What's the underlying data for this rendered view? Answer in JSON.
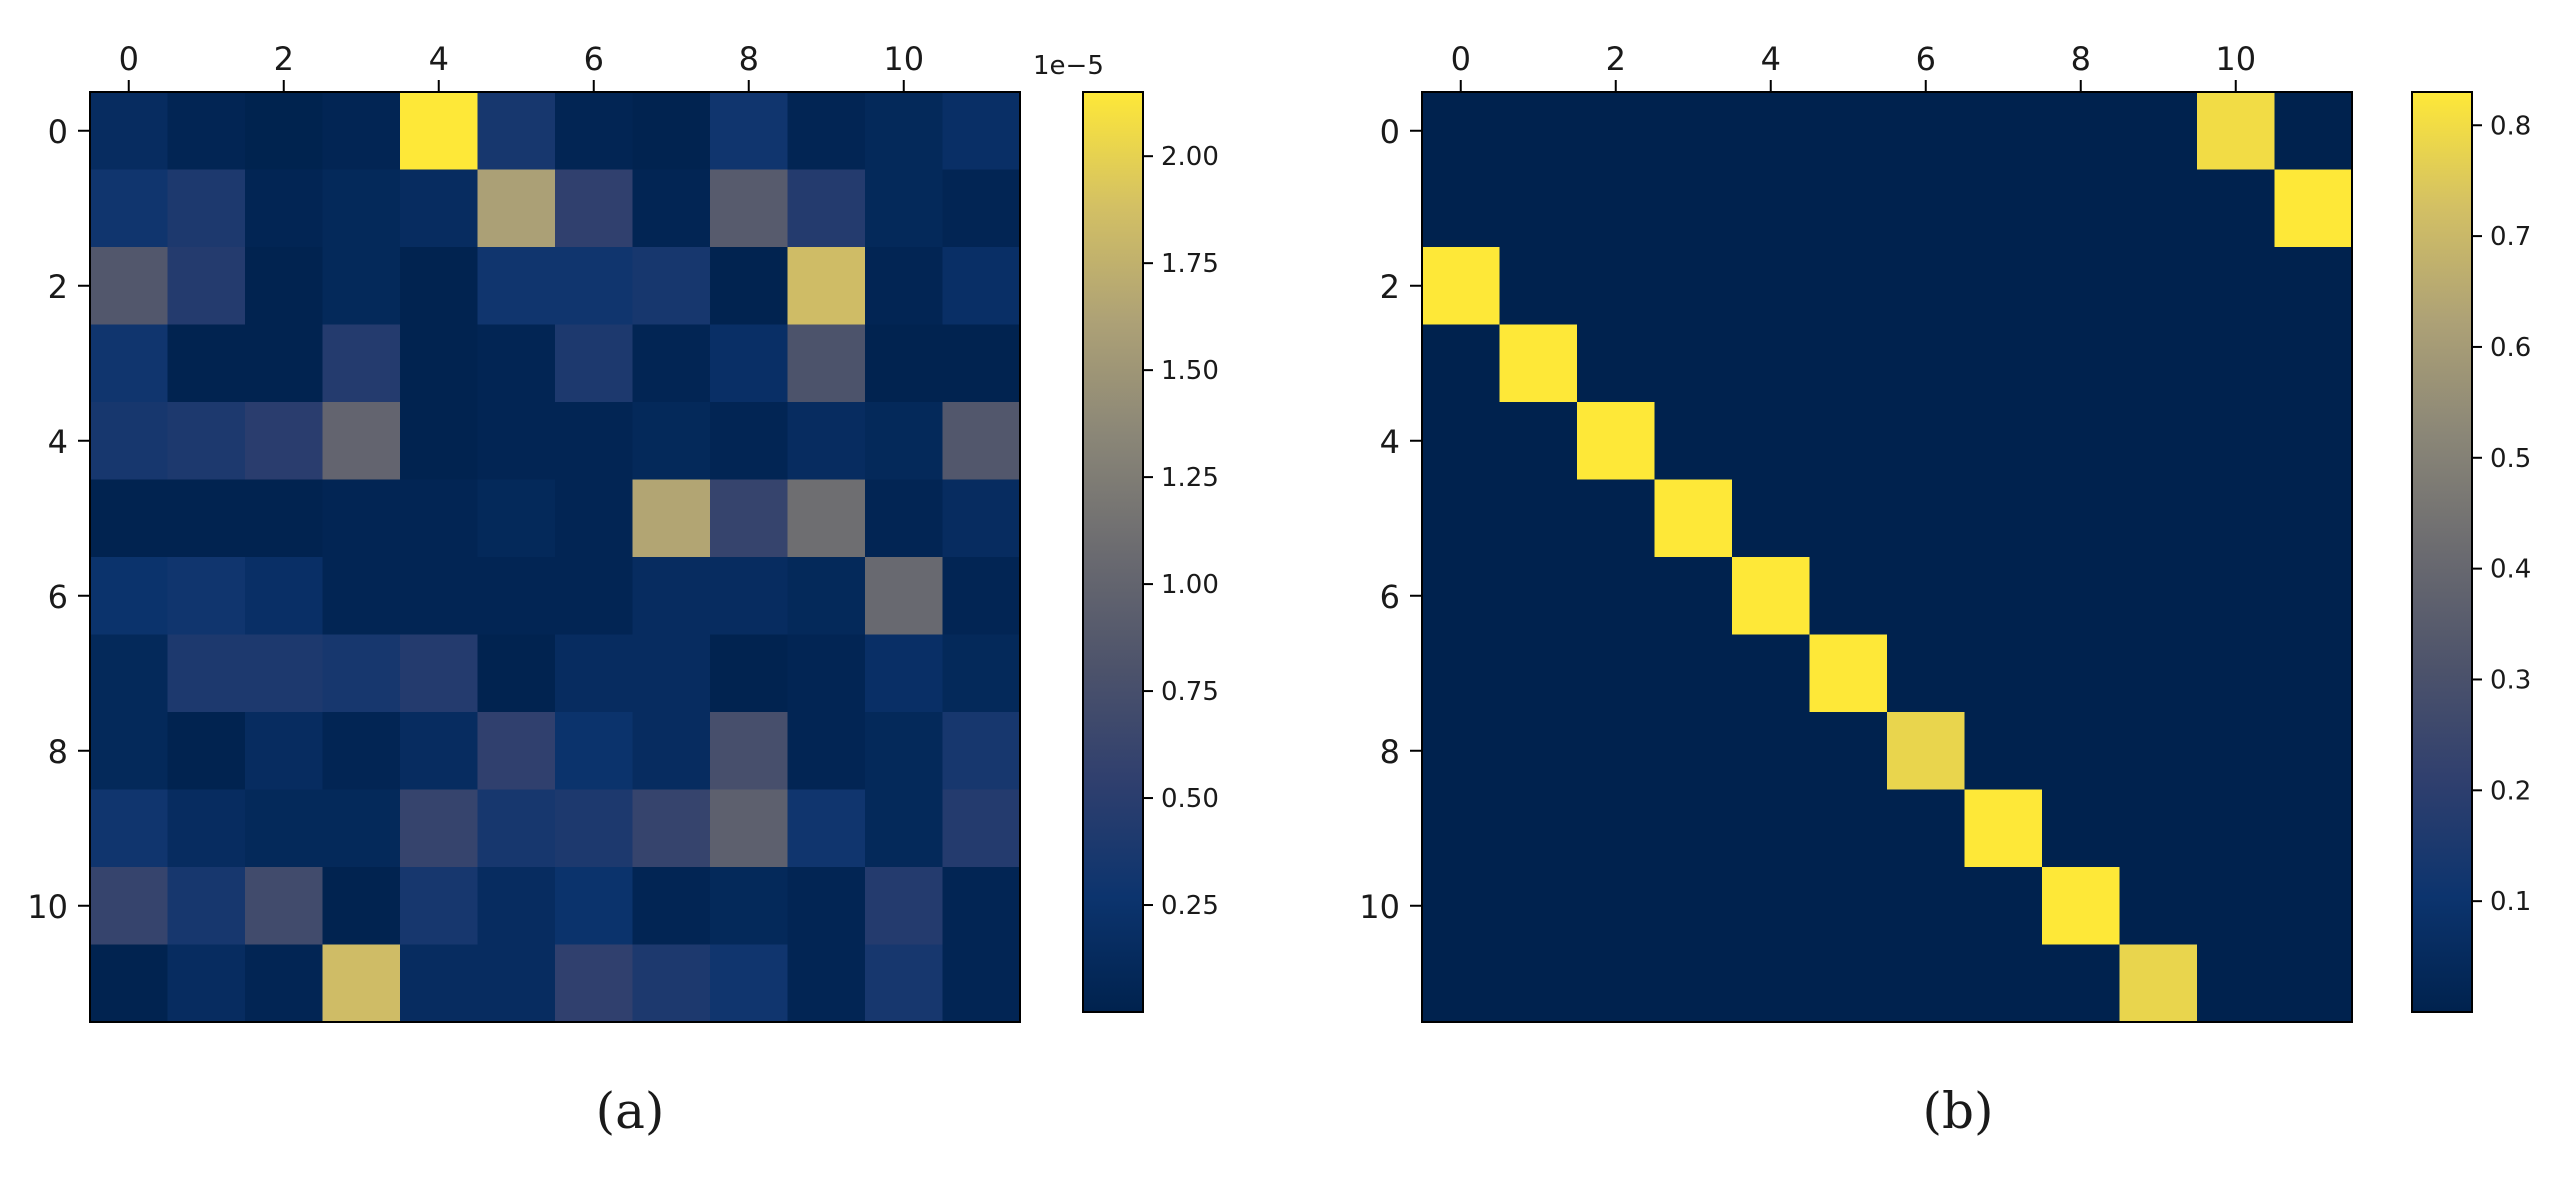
{
  "chart_data": [
    {
      "type": "heatmap",
      "panel_label": "(a)",
      "colormap": "cividis",
      "x_ticks": [
        "0",
        "2",
        "4",
        "6",
        "8",
        "10"
      ],
      "y_ticks": [
        "0",
        "2",
        "4",
        "6",
        "8",
        "10"
      ],
      "colorbar": {
        "offset_label": "1e−5",
        "ticks": [
          "0.25",
          "0.50",
          "0.75",
          "1.00",
          "1.25",
          "1.50",
          "1.75",
          "2.00"
        ],
        "tick_values": [
          0.25,
          0.5,
          0.75,
          1.0,
          1.25,
          1.5,
          1.75,
          2.0
        ],
        "range": [
          0.0,
          2.15
        ]
      },
      "matrix": [
        [
          0.15,
          0.05,
          0.01,
          0.05,
          2.15,
          0.35,
          0.05,
          0.02,
          0.3,
          0.05,
          0.1,
          0.2
        ],
        [
          0.3,
          0.4,
          0.05,
          0.1,
          0.15,
          1.6,
          0.55,
          0.05,
          0.9,
          0.45,
          0.1,
          0.05
        ],
        [
          0.85,
          0.45,
          0.02,
          0.1,
          0.02,
          0.3,
          0.3,
          0.35,
          0.02,
          1.85,
          0.05,
          0.2
        ],
        [
          0.3,
          0.02,
          0.02,
          0.45,
          0.02,
          0.05,
          0.4,
          0.05,
          0.2,
          0.8,
          0.02,
          0.02
        ],
        [
          0.35,
          0.4,
          0.5,
          1.0,
          0.02,
          0.05,
          0.05,
          0.1,
          0.05,
          0.15,
          0.1,
          0.85
        ],
        [
          0.02,
          0.02,
          0.02,
          0.05,
          0.05,
          0.1,
          0.05,
          1.65,
          0.6,
          1.1,
          0.05,
          0.15
        ],
        [
          0.25,
          0.3,
          0.2,
          0.05,
          0.05,
          0.05,
          0.05,
          0.15,
          0.15,
          0.1,
          1.05,
          0.05
        ],
        [
          0.1,
          0.4,
          0.4,
          0.35,
          0.45,
          0.02,
          0.15,
          0.15,
          0.02,
          0.05,
          0.2,
          0.1
        ],
        [
          0.1,
          0.02,
          0.15,
          0.05,
          0.15,
          0.55,
          0.25,
          0.15,
          0.75,
          0.05,
          0.1,
          0.35
        ],
        [
          0.3,
          0.15,
          0.1,
          0.1,
          0.6,
          0.35,
          0.4,
          0.6,
          0.95,
          0.3,
          0.1,
          0.45
        ],
        [
          0.6,
          0.35,
          0.7,
          0.02,
          0.35,
          0.15,
          0.25,
          0.05,
          0.1,
          0.05,
          0.45,
          0.05
        ],
        [
          0.02,
          0.15,
          0.05,
          1.85,
          0.15,
          0.15,
          0.55,
          0.4,
          0.3,
          0.05,
          0.35,
          0.05
        ]
      ]
    },
    {
      "type": "heatmap",
      "panel_label": "(b)",
      "colormap": "cividis",
      "x_ticks": [
        "0",
        "2",
        "4",
        "6",
        "8",
        "10"
      ],
      "y_ticks": [
        "0",
        "2",
        "4",
        "6",
        "8",
        "10"
      ],
      "colorbar": {
        "offset_label": "",
        "ticks": [
          "0.1",
          "0.2",
          "0.3",
          "0.4",
          "0.5",
          "0.6",
          "0.7",
          "0.8"
        ],
        "tick_values": [
          0.1,
          0.2,
          0.3,
          0.4,
          0.5,
          0.6,
          0.7,
          0.8
        ],
        "range": [
          0.0,
          0.83
        ]
      },
      "matrix": [
        [
          0,
          0,
          0,
          0,
          0,
          0,
          0,
          0,
          0,
          0,
          0.8,
          0
        ],
        [
          0,
          0,
          0,
          0,
          0,
          0,
          0,
          0,
          0,
          0,
          0,
          0.83
        ],
        [
          0.83,
          0,
          0,
          0,
          0,
          0,
          0,
          0,
          0,
          0,
          0,
          0
        ],
        [
          0,
          0.83,
          0,
          0,
          0,
          0,
          0,
          0,
          0,
          0,
          0,
          0
        ],
        [
          0,
          0,
          0.83,
          0,
          0,
          0,
          0,
          0,
          0,
          0,
          0,
          0
        ],
        [
          0,
          0,
          0,
          0.83,
          0,
          0,
          0,
          0,
          0,
          0,
          0,
          0
        ],
        [
          0,
          0,
          0,
          0,
          0.83,
          0,
          0,
          0,
          0,
          0,
          0,
          0
        ],
        [
          0,
          0,
          0,
          0,
          0,
          0.83,
          0,
          0,
          0,
          0,
          0,
          0
        ],
        [
          0,
          0,
          0,
          0,
          0,
          0,
          0.78,
          0,
          0,
          0,
          0,
          0
        ],
        [
          0,
          0,
          0,
          0,
          0,
          0,
          0,
          0.83,
          0,
          0,
          0,
          0
        ],
        [
          0,
          0,
          0,
          0,
          0,
          0,
          0,
          0,
          0.83,
          0,
          0,
          0
        ],
        [
          0,
          0,
          0,
          0,
          0,
          0,
          0,
          0,
          0,
          0.78,
          0,
          0
        ]
      ]
    }
  ]
}
